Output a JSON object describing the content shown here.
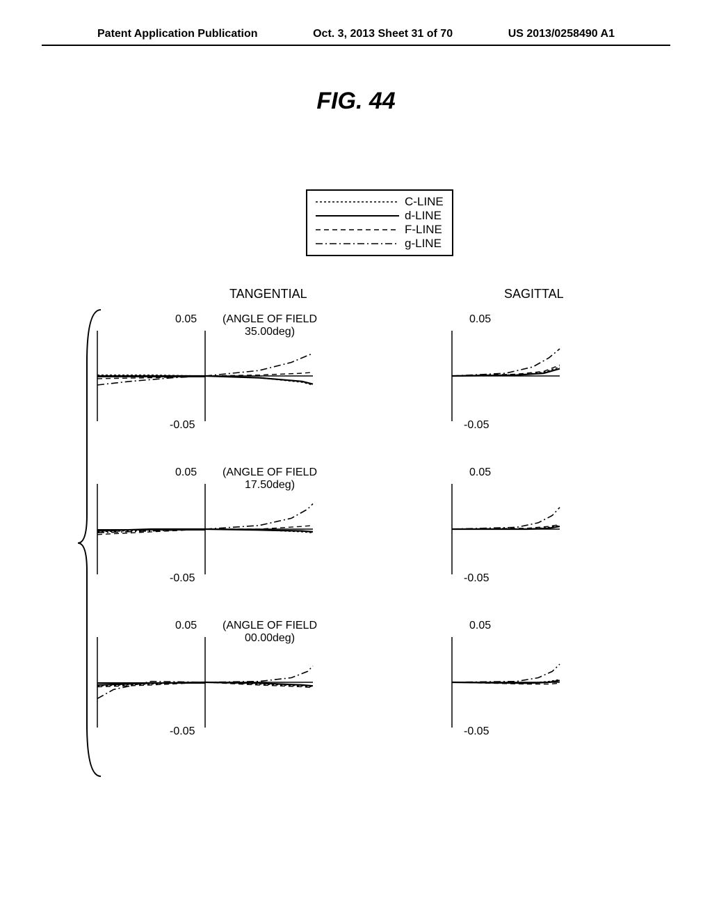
{
  "header": {
    "left": "Patent Application Publication",
    "center": "Oct. 3, 2013  Sheet 31 of 70",
    "right": "US 2013/0258490 A1"
  },
  "figure_title": "FIG.  44",
  "legend": {
    "border_color": "#000000",
    "items": [
      {
        "label": "C-LINE",
        "pattern": "fine-dash"
      },
      {
        "label": "d-LINE",
        "pattern": "solid"
      },
      {
        "label": "F-LINE",
        "pattern": "dash"
      },
      {
        "label": "g-LINE",
        "pattern": "dash-dot"
      }
    ]
  },
  "columns": {
    "tangential": "TANGENTIAL",
    "sagittal": "SAGITTAL"
  },
  "rows": [
    {
      "angle_label_1": "(ANGLE OF FIELD",
      "angle_label_2": "35.00deg)",
      "ytop": "0.05",
      "ybot": "-0.05"
    },
    {
      "angle_label_1": "(ANGLE OF FIELD",
      "angle_label_2": "17.50deg)",
      "ytop": "0.05",
      "ybot": "-0.05"
    },
    {
      "angle_label_1": "(ANGLE OF FIELD",
      "angle_label_2": "00.00deg)",
      "ytop": "0.05",
      "ybot": "-0.05"
    }
  ],
  "style": {
    "background": "#ffffff",
    "stroke": "#000000",
    "font_family": "Arial",
    "ytick_fontsize": 16,
    "angle_fontsize": 16,
    "col_label_fontsize": 18,
    "fig_title_fontsize": 34,
    "line_width": 1.5,
    "ylim": [
      -0.05,
      0.05
    ]
  },
  "curves": {
    "row0": {
      "tangential": {
        "c": [
          [
            -1,
            0.001
          ],
          [
            -0.5,
            0.001
          ],
          [
            0,
            0
          ],
          [
            0.5,
            -0.002
          ],
          [
            0.9,
            -0.007
          ],
          [
            1,
            -0.01
          ]
        ],
        "d": [
          [
            -1,
            0
          ],
          [
            -0.5,
            0
          ],
          [
            0,
            0
          ],
          [
            0.5,
            -0.002
          ],
          [
            0.9,
            -0.006
          ],
          [
            1,
            -0.009
          ]
        ],
        "f": [
          [
            -1,
            -0.003
          ],
          [
            -0.5,
            -0.002
          ],
          [
            0,
            0
          ],
          [
            0.5,
            0.001
          ],
          [
            0.9,
            0.003
          ],
          [
            1,
            0.004
          ]
        ],
        "g": [
          [
            -1,
            -0.01
          ],
          [
            -0.7,
            -0.006
          ],
          [
            -0.3,
            -0.002
          ],
          [
            0,
            0
          ],
          [
            0.5,
            0.006
          ],
          [
            0.8,
            0.015
          ],
          [
            1,
            0.025
          ]
        ]
      },
      "sagittal": {
        "c": [
          [
            0,
            0
          ],
          [
            0.6,
            0.001
          ],
          [
            0.85,
            0.004
          ],
          [
            1,
            0.01
          ]
        ],
        "d": [
          [
            0,
            0
          ],
          [
            0.6,
            0.001
          ],
          [
            0.85,
            0.003
          ],
          [
            1,
            0.008
          ]
        ],
        "f": [
          [
            0,
            0
          ],
          [
            0.6,
            0.002
          ],
          [
            0.85,
            0.005
          ],
          [
            1,
            0.012
          ]
        ],
        "g": [
          [
            0,
            0
          ],
          [
            0.5,
            0.003
          ],
          [
            0.75,
            0.01
          ],
          [
            0.9,
            0.02
          ],
          [
            1,
            0.03
          ]
        ]
      }
    },
    "row1": {
      "tangential": {
        "c": [
          [
            -1,
            -0.003
          ],
          [
            -0.5,
            -0.001
          ],
          [
            0,
            0
          ],
          [
            0.5,
            -0.001
          ],
          [
            0.9,
            -0.003
          ],
          [
            1,
            -0.004
          ]
        ],
        "d": [
          [
            -1,
            -0.002
          ],
          [
            -0.5,
            0
          ],
          [
            0,
            0
          ],
          [
            0.5,
            -0.001
          ],
          [
            0.9,
            -0.002
          ],
          [
            1,
            -0.003
          ]
        ],
        "f": [
          [
            -1,
            -0.006
          ],
          [
            -0.5,
            -0.003
          ],
          [
            0,
            0
          ],
          [
            0.5,
            0
          ],
          [
            0.9,
            0.003
          ],
          [
            1,
            0.004
          ]
        ],
        "g": [
          [
            -1,
            -0.004
          ],
          [
            -0.5,
            -0.002
          ],
          [
            0,
            0
          ],
          [
            0.5,
            0.004
          ],
          [
            0.8,
            0.012
          ],
          [
            0.95,
            0.022
          ],
          [
            1,
            0.028
          ]
        ]
      },
      "sagittal": {
        "c": [
          [
            0,
            0
          ],
          [
            0.7,
            0
          ],
          [
            0.9,
            0.002
          ],
          [
            1,
            0.004
          ]
        ],
        "d": [
          [
            0,
            0
          ],
          [
            0.7,
            0
          ],
          [
            0.9,
            0.001
          ],
          [
            1,
            0.003
          ]
        ],
        "f": [
          [
            0,
            0
          ],
          [
            0.7,
            0.001
          ],
          [
            0.9,
            0.003
          ],
          [
            1,
            0.005
          ]
        ],
        "g": [
          [
            0,
            0
          ],
          [
            0.6,
            0.002
          ],
          [
            0.8,
            0.007
          ],
          [
            0.93,
            0.015
          ],
          [
            1,
            0.024
          ]
        ]
      }
    },
    "row2": {
      "tangential": {
        "c": [
          [
            -1,
            -0.004
          ],
          [
            -0.5,
            -0.002
          ],
          [
            0,
            0
          ],
          [
            0.5,
            -0.002
          ],
          [
            0.9,
            -0.004
          ],
          [
            1,
            -0.005
          ]
        ],
        "d": [
          [
            -1,
            -0.003
          ],
          [
            -0.5,
            -0.001
          ],
          [
            0,
            0
          ],
          [
            0.5,
            -0.001
          ],
          [
            0.9,
            -0.003
          ],
          [
            1,
            -0.004
          ]
        ],
        "f": [
          [
            -1,
            -0.005
          ],
          [
            -0.5,
            -0.003
          ],
          [
            0,
            0
          ],
          [
            0.5,
            -0.003
          ],
          [
            0.9,
            -0.005
          ],
          [
            1,
            -0.006
          ]
        ],
        "g": [
          [
            -1,
            -0.018
          ],
          [
            -0.85,
            -0.008
          ],
          [
            -0.5,
            0.001
          ],
          [
            0,
            0
          ],
          [
            0.5,
            0.001
          ],
          [
            0.8,
            0.005
          ],
          [
            0.95,
            0.012
          ],
          [
            1,
            0.018
          ]
        ]
      },
      "sagittal": {
        "c": [
          [
            0,
            0
          ],
          [
            0.7,
            -0.001
          ],
          [
            0.9,
            0.001
          ],
          [
            1,
            0.003
          ]
        ],
        "d": [
          [
            0,
            0
          ],
          [
            0.7,
            -0.001
          ],
          [
            0.9,
            0
          ],
          [
            1,
            0.002
          ]
        ],
        "f": [
          [
            0,
            0
          ],
          [
            0.7,
            -0.002
          ],
          [
            0.9,
            -0.002
          ],
          [
            1,
            -0.001
          ]
        ],
        "g": [
          [
            0,
            0
          ],
          [
            0.6,
            0.001
          ],
          [
            0.8,
            0.005
          ],
          [
            0.93,
            0.012
          ],
          [
            1,
            0.02
          ]
        ]
      }
    }
  },
  "dash_patterns": {
    "fine-dash": "3,3",
    "solid": "",
    "dash": "7,5",
    "dash-dot": "10,4,2,4"
  }
}
